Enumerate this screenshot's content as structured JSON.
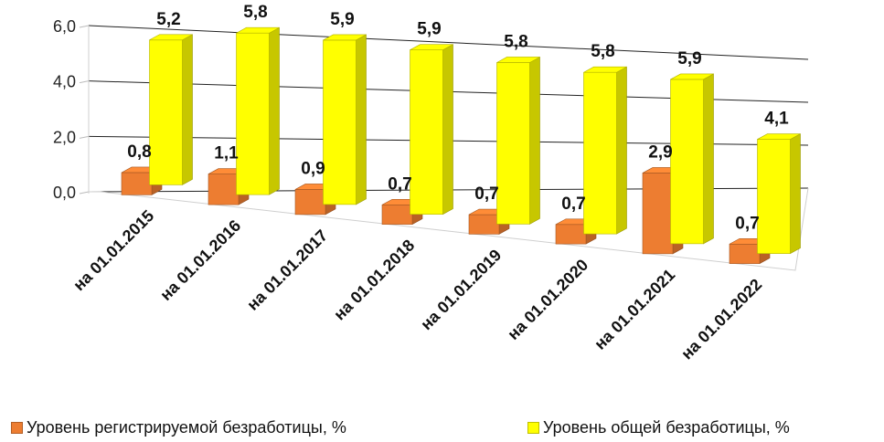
{
  "chart_data": {
    "type": "bar",
    "categories": [
      "на 01.01.2015",
      "на 01.01.2016",
      "на 01.01.2017",
      "на 01.01.2018",
      "на 01.01.2019",
      "на 01.01.2020",
      "на 01.01.2021",
      "на 01.01.2022"
    ],
    "series": [
      {
        "name": "Уровень регистрируемой безработицы, %",
        "values": [
          0.8,
          1.1,
          0.9,
          0.7,
          0.7,
          0.7,
          2.9,
          0.7
        ],
        "labels": [
          "0,8",
          "1,1",
          "0,9",
          "0,7",
          "0,7",
          "0,7",
          "2,9",
          "0,7"
        ],
        "color": "#ED7D31"
      },
      {
        "name": "Уровень общей безработицы, %",
        "values": [
          5.2,
          5.8,
          5.9,
          5.9,
          5.8,
          5.8,
          5.9,
          4.1
        ],
        "labels": [
          "5,2",
          "5,8",
          "5,9",
          "5,9",
          "5,8",
          "5,8",
          "5,9",
          "4,1"
        ],
        "color": "#FFFF00"
      }
    ],
    "yticks": [
      "0,0",
      "2,0",
      "4,0",
      "6,0"
    ],
    "ylim": [
      0,
      6
    ],
    "grid": true,
    "legend_position": "bottom",
    "style": "3d-clustered-column"
  }
}
